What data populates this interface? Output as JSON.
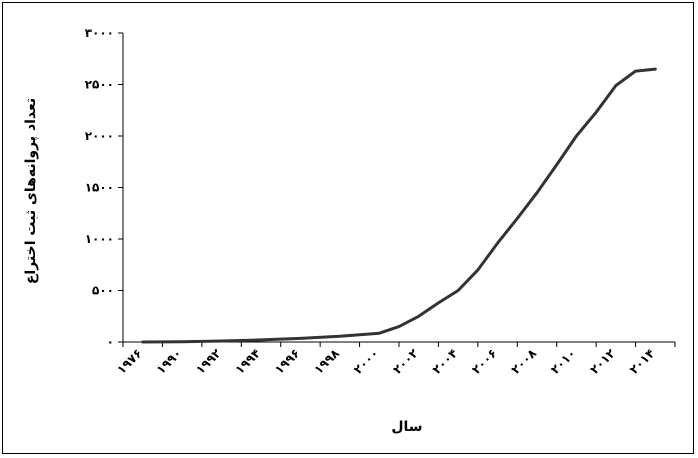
{
  "chart_data": {
    "type": "line",
    "title": "",
    "xlabel": "سال",
    "ylabel": "تعداد پروانه‌های ثبت اختراع",
    "x": [
      1976,
      1990,
      1992,
      1994,
      1996,
      1998,
      2000,
      2001,
      2002,
      2003,
      2004,
      2005,
      2006,
      2007,
      2008,
      2009,
      2010,
      2011,
      2012,
      2013,
      2014
    ],
    "x_tick_labels": [
      "۱۹۷۶",
      "۱۹۹۰",
      "۱۹۹۲",
      "۱۹۹۴",
      "۱۹۹۶",
      "۱۹۹۸",
      "۲۰۰۰",
      "۲۰۰۲",
      "۲۰۰۴",
      "۲۰۰۶",
      "۲۰۰۸",
      "۲۰۱۰",
      "۲۰۱۲",
      "۲۰۱۴"
    ],
    "y_ticks": [
      0,
      500,
      1000,
      1500,
      2000,
      2500,
      3000
    ],
    "y_tick_labels": [
      "۰",
      "۵۰۰",
      "۱۰۰۰",
      "۱۵۰۰",
      "۲۰۰۰",
      "۲۵۰۰",
      "۳۰۰۰"
    ],
    "ylim": [
      0,
      3000
    ],
    "grid": false,
    "legend": "none",
    "series": [
      {
        "values": [
          0,
          2,
          10,
          20,
          35,
          55,
          85,
          150,
          250,
          380,
          500,
          700,
          960,
          1200,
          1450,
          1720,
          2000,
          2230,
          2490,
          2630,
          2650
        ]
      }
    ],
    "line_color": "#333333"
  }
}
